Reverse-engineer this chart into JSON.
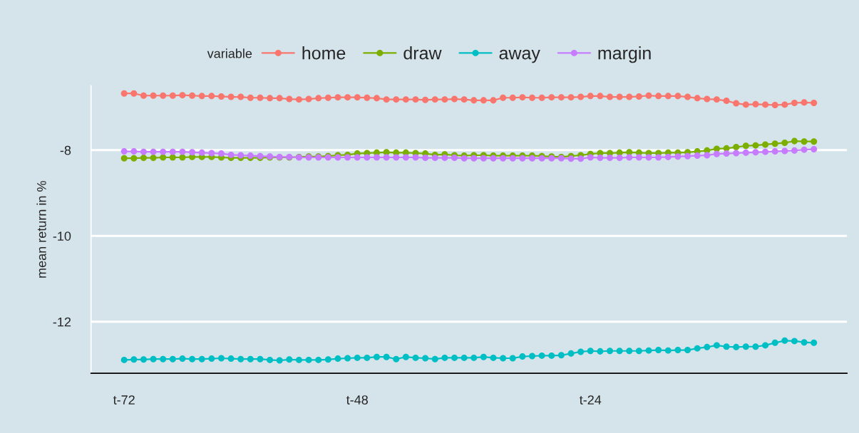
{
  "chart_data": {
    "type": "line",
    "ylabel": "mean return in %",
    "legend_title": "variable",
    "categories": [
      "t-72",
      null,
      null,
      null,
      null,
      null,
      null,
      null,
      null,
      null,
      null,
      null,
      null,
      null,
      null,
      null,
      null,
      null,
      null,
      null,
      null,
      null,
      null,
      null,
      "t-48",
      null,
      null,
      null,
      null,
      null,
      null,
      null,
      null,
      null,
      null,
      null,
      null,
      null,
      null,
      null,
      null,
      null,
      null,
      null,
      null,
      null,
      null,
      null,
      "t-24",
      null,
      null,
      null,
      null,
      null,
      null,
      null,
      null,
      null,
      null,
      null,
      null,
      null,
      null,
      null,
      null,
      null,
      null,
      null,
      null,
      null,
      null,
      null
    ],
    "series": [
      {
        "name": "home",
        "color": "#f8766d",
        "values": [
          -6.68,
          -6.68,
          -6.73,
          -6.73,
          -6.73,
          -6.73,
          -6.72,
          -6.73,
          -6.74,
          -6.74,
          -6.75,
          -6.76,
          -6.76,
          -6.78,
          -6.78,
          -6.79,
          -6.79,
          -6.81,
          -6.82,
          -6.81,
          -6.79,
          -6.78,
          -6.77,
          -6.77,
          -6.77,
          -6.78,
          -6.79,
          -6.82,
          -6.82,
          -6.82,
          -6.82,
          -6.83,
          -6.82,
          -6.82,
          -6.81,
          -6.82,
          -6.84,
          -6.84,
          -6.84,
          -6.78,
          -6.78,
          -6.77,
          -6.78,
          -6.78,
          -6.77,
          -6.77,
          -6.77,
          -6.76,
          -6.74,
          -6.74,
          -6.76,
          -6.76,
          -6.76,
          -6.75,
          -6.73,
          -6.74,
          -6.74,
          -6.74,
          -6.76,
          -6.79,
          -6.81,
          -6.82,
          -6.85,
          -6.91,
          -6.94,
          -6.93,
          -6.94,
          -6.95,
          -6.94,
          -6.9,
          -6.89,
          -6.9
        ]
      },
      {
        "name": "draw",
        "color": "#7cae00",
        "values": [
          -8.19,
          -8.19,
          -8.18,
          -8.18,
          -8.17,
          -8.17,
          -8.17,
          -8.16,
          -8.16,
          -8.16,
          -8.17,
          -8.18,
          -8.18,
          -8.18,
          -8.18,
          -8.17,
          -8.17,
          -8.17,
          -8.16,
          -8.15,
          -8.15,
          -8.14,
          -8.12,
          -8.11,
          -8.08,
          -8.07,
          -8.06,
          -8.05,
          -8.06,
          -8.06,
          -8.07,
          -8.08,
          -8.11,
          -8.1,
          -8.12,
          -8.13,
          -8.12,
          -8.12,
          -8.13,
          -8.13,
          -8.13,
          -8.13,
          -8.13,
          -8.14,
          -8.15,
          -8.16,
          -8.14,
          -8.12,
          -8.09,
          -8.07,
          -8.07,
          -8.06,
          -8.05,
          -8.06,
          -8.07,
          -8.07,
          -8.06,
          -8.06,
          -8.05,
          -8.03,
          -8.01,
          -7.97,
          -7.96,
          -7.93,
          -7.9,
          -7.89,
          -7.87,
          -7.85,
          -7.83,
          -7.79,
          -7.8,
          -7.8
        ]
      },
      {
        "name": "away",
        "color": "#00bfc4",
        "values": [
          -12.89,
          -12.88,
          -12.88,
          -12.87,
          -12.87,
          -12.87,
          -12.86,
          -12.87,
          -12.87,
          -12.86,
          -12.85,
          -12.86,
          -12.87,
          -12.87,
          -12.87,
          -12.89,
          -12.9,
          -12.88,
          -12.89,
          -12.89,
          -12.89,
          -12.88,
          -12.86,
          -12.85,
          -12.84,
          -12.84,
          -12.82,
          -12.82,
          -12.87,
          -12.82,
          -12.84,
          -12.85,
          -12.87,
          -12.84,
          -12.84,
          -12.84,
          -12.84,
          -12.82,
          -12.84,
          -12.85,
          -12.85,
          -12.81,
          -12.8,
          -12.79,
          -12.79,
          -12.78,
          -12.74,
          -12.7,
          -12.68,
          -12.69,
          -12.68,
          -12.68,
          -12.68,
          -12.68,
          -12.67,
          -12.66,
          -12.67,
          -12.66,
          -12.66,
          -12.62,
          -12.59,
          -12.55,
          -12.58,
          -12.59,
          -12.58,
          -12.58,
          -12.55,
          -12.49,
          -12.44,
          -12.45,
          -12.48,
          -12.49
        ]
      },
      {
        "name": "margin",
        "color": "#c77cff",
        "values": [
          -8.03,
          -8.03,
          -8.04,
          -8.04,
          -8.04,
          -8.04,
          -8.04,
          -8.05,
          -8.06,
          -8.07,
          -8.08,
          -8.11,
          -8.12,
          -8.13,
          -8.14,
          -8.15,
          -8.16,
          -8.16,
          -8.17,
          -8.17,
          -8.17,
          -8.17,
          -8.17,
          -8.17,
          -8.17,
          -8.17,
          -8.17,
          -8.17,
          -8.17,
          -8.17,
          -8.17,
          -8.18,
          -8.18,
          -8.18,
          -8.18,
          -8.19,
          -8.19,
          -8.19,
          -8.19,
          -8.19,
          -8.19,
          -8.19,
          -8.19,
          -8.19,
          -8.19,
          -8.19,
          -8.2,
          -8.2,
          -8.17,
          -8.18,
          -8.18,
          -8.18,
          -8.17,
          -8.17,
          -8.17,
          -8.17,
          -8.16,
          -8.15,
          -8.14,
          -8.13,
          -8.12,
          -8.09,
          -8.08,
          -8.07,
          -8.06,
          -8.05,
          -8.04,
          -8.03,
          -8.02,
          -8.01,
          -7.99,
          -7.98
        ]
      }
    ],
    "ylim": [
      -13.2,
      -6.5
    ],
    "yticks": [
      -12,
      -10,
      -8
    ],
    "grid": "y",
    "legend": "top",
    "marker": "circle",
    "line_style": "solid"
  }
}
